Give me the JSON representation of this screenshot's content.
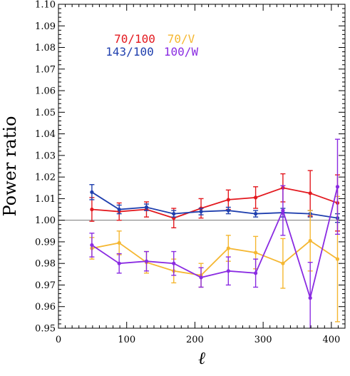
{
  "chart_data": {
    "type": "line",
    "xlabel": "ℓ",
    "ylabel": "Power ratio",
    "xlim": [
      0,
      420
    ],
    "ylim": [
      0.95,
      1.1
    ],
    "x_ticks": [
      0,
      100,
      200,
      300,
      400
    ],
    "x_tick_labels": [
      "0",
      "100",
      "200",
      "300",
      "400"
    ],
    "y_ticks": [
      0.95,
      0.96,
      0.97,
      0.98,
      0.99,
      1.0,
      1.01,
      1.02,
      1.03,
      1.04,
      1.05,
      1.06,
      1.07,
      1.08,
      1.09,
      1.1
    ],
    "y_tick_labels": [
      "0.95",
      "0.96",
      "0.97",
      "0.98",
      "0.99",
      "1.00",
      "1.01",
      "1.02",
      "1.03",
      "1.04",
      "1.05",
      "1.06",
      "1.07",
      "1.08",
      "1.09",
      "1.10"
    ],
    "reference_line": 1.0,
    "grid": false,
    "series": [
      {
        "name": "70/100",
        "color": "#e3191f",
        "x": [
          49,
          89,
          129,
          169,
          209,
          249,
          289,
          329,
          369,
          409
        ],
        "y": [
          1.005,
          1.004,
          1.005,
          1.001,
          1.0055,
          1.0095,
          1.0105,
          1.015,
          1.0125,
          1.008
        ],
        "err": [
          0.0055,
          0.004,
          0.0035,
          0.0045,
          0.0045,
          0.0045,
          0.005,
          0.0065,
          0.0105,
          0.013
        ]
      },
      {
        "name": "143/100",
        "color": "#1f3fae",
        "x": [
          49,
          89,
          129,
          169,
          209,
          249,
          289,
          329,
          369,
          409
        ],
        "y": [
          1.013,
          1.005,
          1.006,
          1.003,
          1.004,
          1.0045,
          1.003,
          1.0035,
          1.003,
          1.001
        ],
        "err": [
          0.0035,
          0.002,
          0.0015,
          0.0015,
          0.0015,
          0.0015,
          0.0015,
          0.002,
          0.0015,
          0.002
        ]
      },
      {
        "name": "70/V",
        "color": "#f5b731",
        "x": [
          49,
          89,
          129,
          169,
          209,
          249,
          289,
          329,
          369,
          409
        ],
        "y": [
          0.987,
          0.9895,
          0.9805,
          0.9765,
          0.9745,
          0.987,
          0.985,
          0.98,
          0.9905,
          0.982
        ],
        "err": [
          0.005,
          0.0055,
          0.005,
          0.0055,
          0.0055,
          0.006,
          0.0075,
          0.0115,
          0.014,
          0.029
        ]
      },
      {
        "name": "100/W",
        "color": "#8a2be2",
        "x": [
          49,
          89,
          129,
          169,
          209,
          249,
          289,
          329,
          369,
          409
        ],
        "y": [
          0.9885,
          0.98,
          0.981,
          0.98,
          0.9735,
          0.9765,
          0.9755,
          1.0045,
          0.964,
          1.0155
        ],
        "err": [
          0.0055,
          0.0045,
          0.0045,
          0.0055,
          0.0045,
          0.0065,
          0.0065,
          0.0115,
          0.0165,
          0.022
        ]
      }
    ]
  }
}
